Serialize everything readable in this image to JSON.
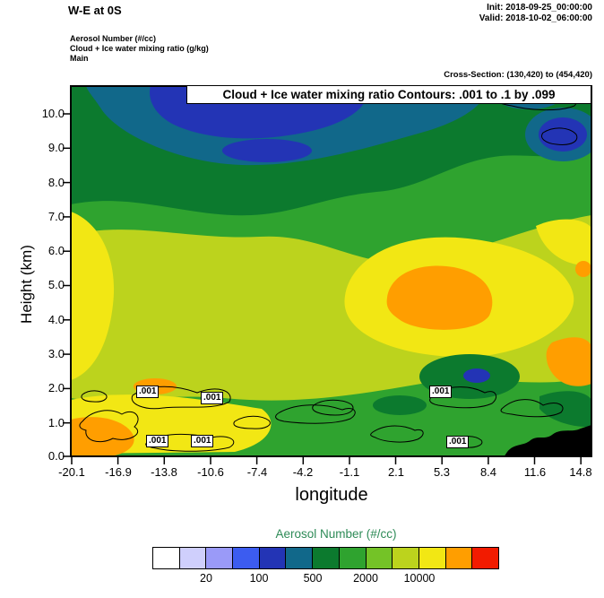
{
  "header": {
    "title": "W-E at 0S",
    "init": "Init: 2018-09-25_00:00:00",
    "valid": "Valid: 2018-10-02_06:00:00"
  },
  "field_info": {
    "line1": "Aerosol Number  (#/cc)",
    "line2": "Cloud + Ice water mixing ratio   (g/kg)",
    "line3": "Main",
    "cross_section": "Cross-Section: (130,420) to (454,420)"
  },
  "plot": {
    "annotation": "Cloud + Ice water mixing ratio Contours: .001 to .1 by .099",
    "xlabel": "longitude",
    "ylabel": "Height (km)",
    "x_ticks": [
      "-20.1",
      "-16.9",
      "-13.8",
      "-10.6",
      "-7.4",
      "-4.2",
      "-1.1",
      "2.1",
      "5.3",
      "8.4",
      "11.6",
      "14.8"
    ],
    "y_ticks": [
      "10.0",
      "9.0",
      "8.0",
      "7.0",
      "6.0",
      "5.0",
      "4.0",
      "3.0",
      "2.0",
      "1.0",
      "0.0"
    ],
    "contour_labels": [
      ".001",
      ".001",
      ".001",
      ".001",
      ".001",
      ".001"
    ]
  },
  "colorbar": {
    "title": "Aerosol Number  (#/cc)",
    "title_color": "#2e8b57",
    "labels": [
      "20",
      "100",
      "500",
      "2000",
      "10000"
    ],
    "colors": [
      "#ffffff",
      "#cfcffc",
      "#9a9af8",
      "#3c5cf0",
      "#2334b5",
      "#11688a",
      "#0c7a2e",
      "#2fa32f",
      "#74c327",
      "#bcd31d",
      "#f2e714",
      "#ff9e00",
      "#f21b00"
    ]
  },
  "chart_data": {
    "type": "heatmap",
    "title": "W-E at 0S",
    "subtitle": "Cloud + Ice water mixing ratio Contours: .001 to .1 by .099",
    "fill_variable": "Aerosol Number (#/cc)",
    "contour_variable": "Cloud + Ice water mixing ratio (g/kg)",
    "contour_levels": [
      0.001,
      0.1
    ],
    "contour_interval": 0.099,
    "xlabel": "longitude",
    "ylabel": "Height (km)",
    "xlim": [
      -20.1,
      14.8
    ],
    "ylim": [
      0.0,
      10.8
    ],
    "x_ticks": [
      -20.1,
      -16.9,
      -13.8,
      -10.6,
      -7.4,
      -4.2,
      -1.1,
      2.1,
      5.3,
      8.4,
      11.6,
      14.8
    ],
    "y_ticks": [
      0.0,
      1.0,
      2.0,
      3.0,
      4.0,
      5.0,
      6.0,
      7.0,
      8.0,
      9.0,
      10.0
    ],
    "colorbar_labels": [
      20,
      100,
      500,
      2000,
      10000
    ],
    "colorbar_colors": [
      "#ffffff",
      "#cfcffc",
      "#9a9af8",
      "#3c5cf0",
      "#2334b5",
      "#11688a",
      "#0c7a2e",
      "#2fa32f",
      "#74c327",
      "#bcd31d",
      "#f2e714",
      "#ff9e00",
      "#f21b00"
    ],
    "legend_position": "bottom",
    "grid": false,
    "cross_section": {
      "from": [
        130,
        420
      ],
      "to": [
        454,
        420
      ]
    },
    "init_time": "2018-09-25_00:00:00",
    "valid_time": "2018-10-02_06:00:00",
    "field_summary": [
      {
        "region": "upper levels 7.5-10.8 km, lon -18 to 0",
        "aerosol_number_cc": "20-100 (navy/teal minimum aloft)"
      },
      {
        "region": "upper levels 7-10.8 km elsewhere",
        "aerosol_number_cc": "100-500 (dark green)"
      },
      {
        "region": "mid levels 2.5-6.5 km broad band",
        "aerosol_number_cc": "2000-5000 (yellow-green/yellow)"
      },
      {
        "region": "lon 2 to 8 at 4-5.5 km and right edge 2-3.5 km",
        "aerosol_number_cc": ">5000 (orange maxima)"
      },
      {
        "region": "left edge lon -20 to -18, 0-1 km",
        "aerosol_number_cc": ">5000 (orange maximum)"
      },
      {
        "region": "boundary layer 0-2 km",
        "aerosol_number_cc": "500-2000 with cloud (.001 g/kg) contour cells along 0.5-2 km"
      },
      {
        "region": "lon 5 to 7 near 1.5-2.5 km",
        "aerosol_number_cc": "20-200 local minimum (dark green/navy)"
      },
      {
        "region": "lon 10 to 14.8 near surface",
        "aerosol_number_cc": "terrain (black silhouette)"
      }
    ]
  }
}
